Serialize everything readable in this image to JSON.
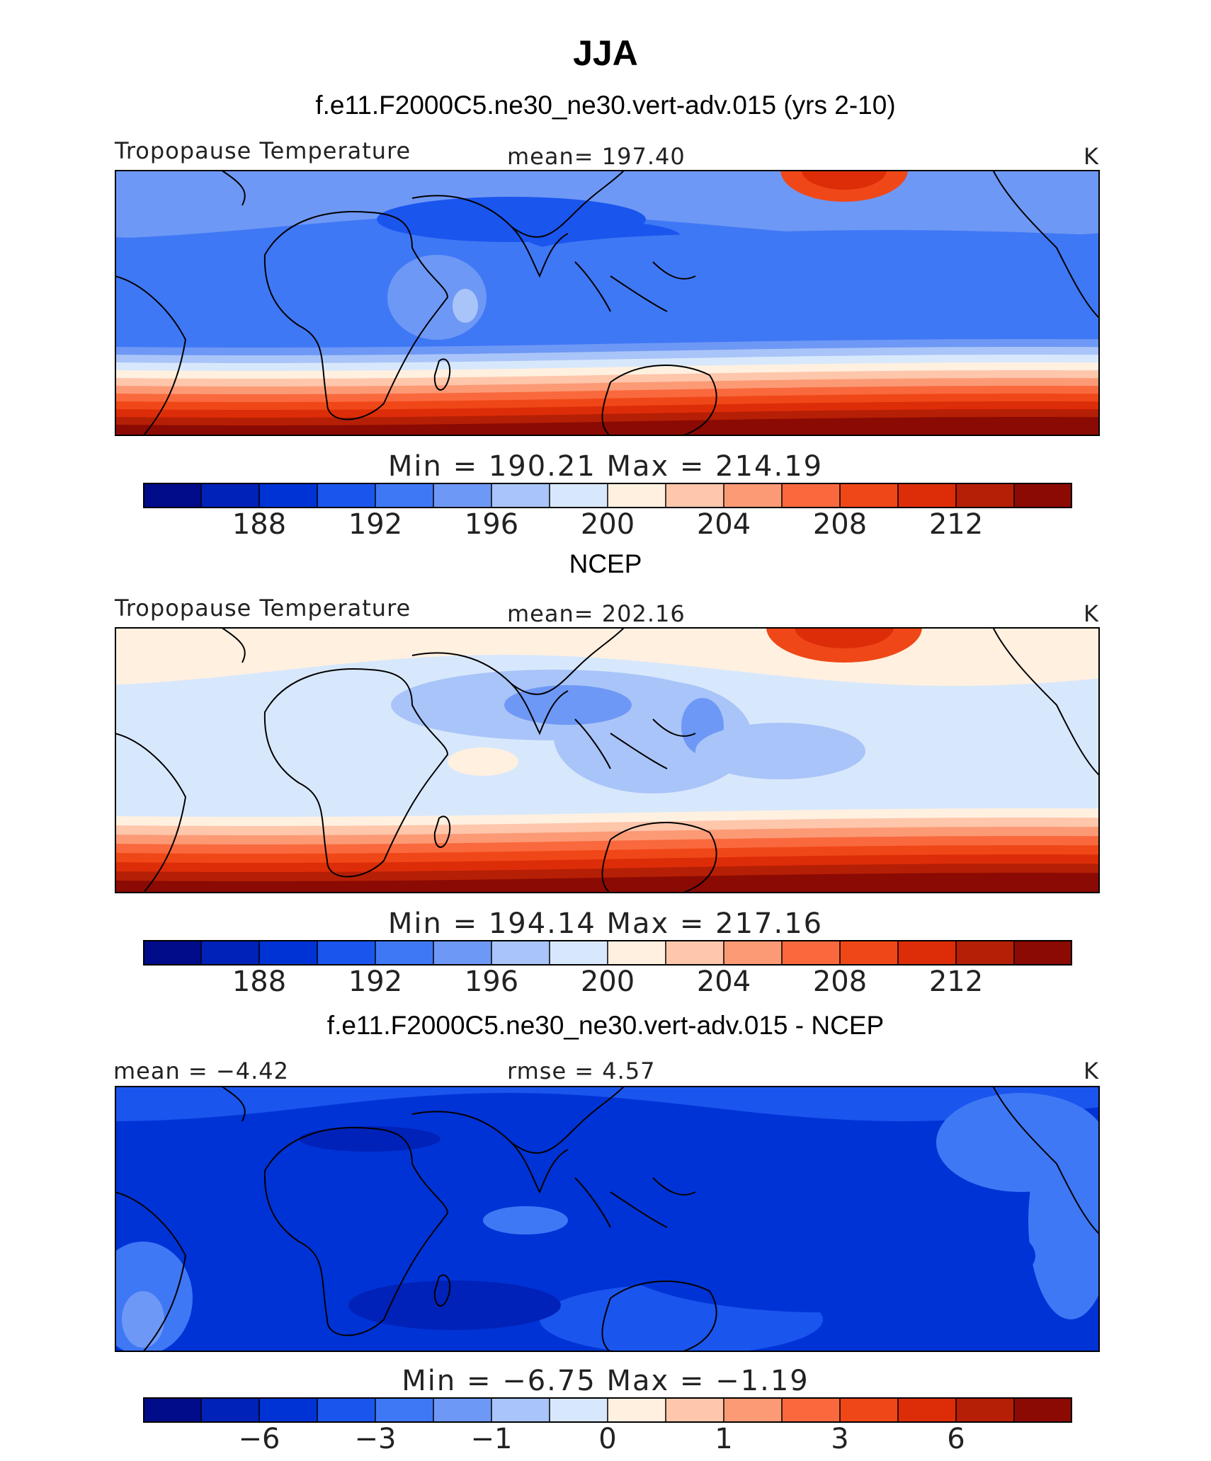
{
  "season_title": "JJA",
  "colors": [
    "#000c8a",
    "#0022b8",
    "#0033d6",
    "#1a55ee",
    "#3f78f5",
    "#6e98f5",
    "#a9c4f8",
    "#d8e8fc",
    "#fff0e0",
    "#fec6ab",
    "#fc9a76",
    "#f9693d",
    "#f04718",
    "#dd2d08",
    "#b51f05",
    "#8b0a03"
  ],
  "chart_data": [
    {
      "type": "heatmap",
      "title": "f.e11.F2000C5.ne30_ne30.vert-adv.015 (yrs 2-10)",
      "variable": "Tropopause Temperature",
      "mean_label": "mean=  197.40",
      "units": "K",
      "min_max": "Min  =  190.21  Max  =  214.19",
      "colorbar_levels": [
        186,
        188,
        190,
        192,
        194,
        196,
        198,
        200,
        202,
        204,
        206,
        208,
        210,
        212,
        214
      ],
      "colorbar_ticks": [
        "188",
        "192",
        "196",
        "200",
        "204",
        "208",
        "212"
      ],
      "min": 190.21,
      "max": 214.19,
      "mean": 197.4
    },
    {
      "type": "heatmap",
      "title": "NCEP",
      "variable": "Tropopause Temperature",
      "mean_label": "mean=  202.16",
      "units": "K",
      "min_max": "Min  =  194.14  Max  =  217.16",
      "colorbar_levels": [
        186,
        188,
        190,
        192,
        194,
        196,
        198,
        200,
        202,
        204,
        206,
        208,
        210,
        212,
        214
      ],
      "colorbar_ticks": [
        "188",
        "192",
        "196",
        "200",
        "204",
        "208",
        "212"
      ],
      "min": 194.14,
      "max": 217.16,
      "mean": 202.16
    },
    {
      "type": "heatmap",
      "title": "f.e11.F2000C5.ne30_ne30.vert-adv.015 - NCEP",
      "mean_label": "mean =   −4.42",
      "rmse_label": "rmse =     4.57",
      "units": "K",
      "min_max": "Min  =    −6.75  Max  =    −1.19",
      "colorbar_levels": [
        -8,
        -6,
        -4,
        -3,
        -2,
        -1,
        -0.5,
        0,
        0.5,
        1,
        2,
        3,
        4,
        6,
        8
      ],
      "colorbar_ticks": [
        "−6",
        "−3",
        "−1",
        "0",
        "1",
        "3",
        "6"
      ],
      "min": -6.75,
      "max": -1.19,
      "mean": -4.42,
      "rmse": 4.57
    }
  ]
}
